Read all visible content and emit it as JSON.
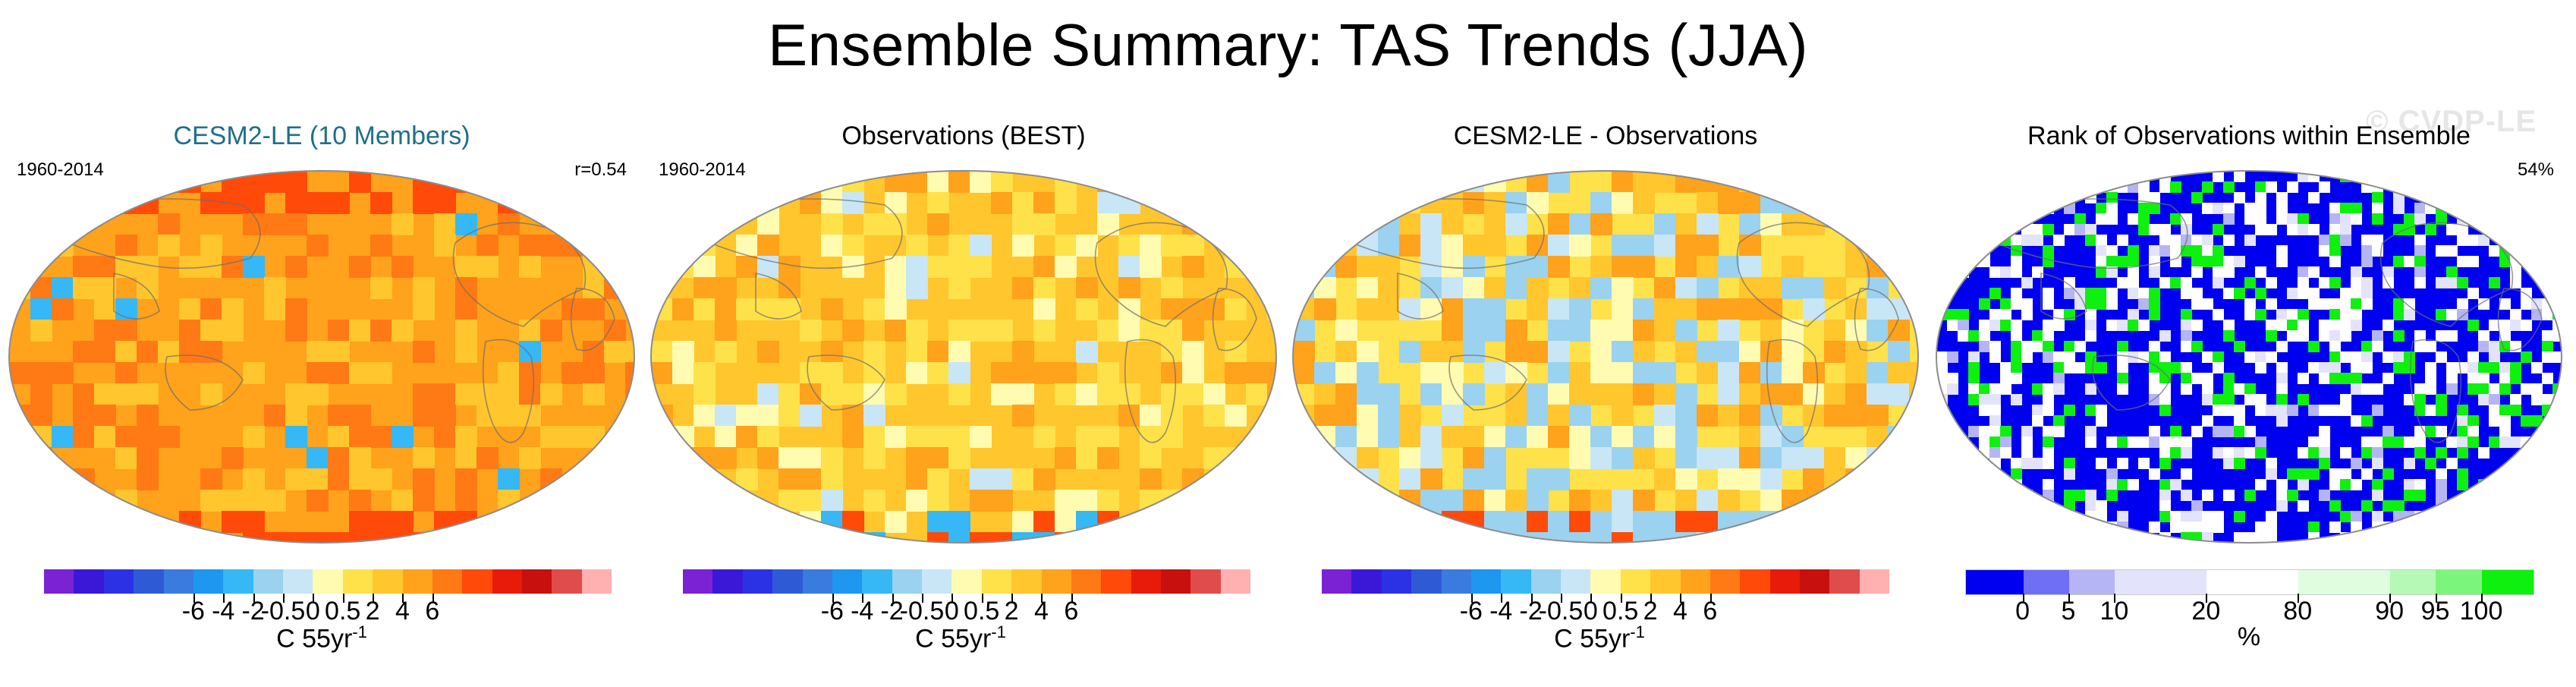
{
  "page": {
    "title": "Ensemble Summary: TAS Trends (JJA)",
    "watermark": "© CVDP-LE"
  },
  "colors": {
    "trend_scale": [
      "#7b22d4",
      "#3b18d8",
      "#2b32e6",
      "#2f5ad6",
      "#3a7be0",
      "#1d97f0",
      "#35b8f5",
      "#9bd2f0",
      "#c8e6f6",
      "#fffbb0",
      "#ffe14a",
      "#ffc62e",
      "#ffa21c",
      "#ff7a14",
      "#ff4a0a",
      "#e81a0a",
      "#c8100e",
      "#e04c4c",
      "#ffb0b0"
    ],
    "rank_scale": [
      "#0000f0",
      "#6f6ff5",
      "#b5b5f5",
      "#e3e3fb",
      "#ffffff",
      "#e0fde0",
      "#b6f9b6",
      "#7cf57c",
      "#0ef00e"
    ],
    "map_outline": "#8c8c8c",
    "coast": "#6e6e6e",
    "title_accent": "#1f6f8b"
  },
  "panels": [
    {
      "title": "CESM2-LE (10 Members)",
      "title_color": "#1f6f8b",
      "left_text": "1960-2014",
      "right_text": "r=0.54",
      "map_style": "model",
      "colorbar": "trend",
      "colorbar_title": "C 55yr",
      "colorbar_sup": "-1"
    },
    {
      "title": "Observations (BEST)",
      "title_color": "#000000",
      "left_text": "1960-2014",
      "right_text": "",
      "map_style": "obs",
      "colorbar": "trend",
      "colorbar_title": "C 55yr",
      "colorbar_sup": "-1"
    },
    {
      "title": "CESM2-LE - Observations",
      "title_color": "#000000",
      "left_text": "",
      "right_text": "",
      "map_style": "diff",
      "colorbar": "trend",
      "colorbar_title": "C 55yr",
      "colorbar_sup": "-1"
    },
    {
      "title": "Rank of Observations within Ensemble",
      "title_color": "#000000",
      "left_text": "",
      "right_text": "54%",
      "map_style": "rank",
      "colorbar": "rank",
      "colorbar_title": "%",
      "colorbar_sup": ""
    }
  ],
  "chart_data": [
    {
      "type": "heatmap",
      "title": "CESM2-LE (10 Members)",
      "period": "1960-2014",
      "pattern_correlation": "r=0.54",
      "projection": "global map",
      "colorbar_ticks": [
        "-6",
        "-4",
        "-2",
        "-0.5",
        "0",
        "0.5",
        "2",
        "4",
        "6"
      ],
      "colorbar_label": "C 55yr-1"
    },
    {
      "type": "heatmap",
      "title": "Observations (BEST)",
      "period": "1960-2014",
      "projection": "global map",
      "colorbar_ticks": [
        "-6",
        "-4",
        "-2",
        "-0.5",
        "0",
        "0.5",
        "2",
        "4",
        "6"
      ],
      "colorbar_label": "C 55yr-1"
    },
    {
      "type": "heatmap",
      "title": "CESM2-LE - Observations",
      "projection": "global map",
      "colorbar_ticks": [
        "-6",
        "-4",
        "-2",
        "-0.5",
        "0",
        "0.5",
        "2",
        "4",
        "6"
      ],
      "colorbar_label": "C 55yr-1"
    },
    {
      "type": "heatmap",
      "title": "Rank of Observations within Ensemble",
      "summary": "54%",
      "projection": "global map",
      "colorbar_ticks": [
        "0",
        "5",
        "10",
        "20",
        "80",
        "90",
        "95",
        "100"
      ],
      "colorbar_label": "%"
    }
  ]
}
